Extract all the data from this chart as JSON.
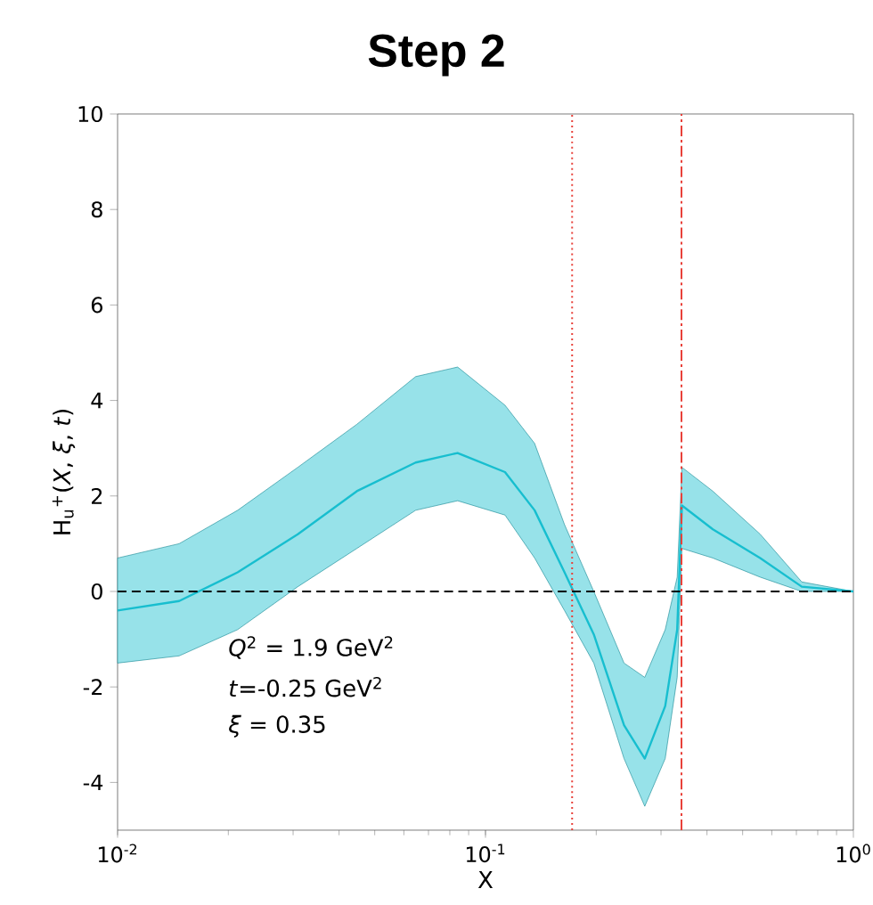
{
  "chart_data": {
    "type": "line",
    "title": "Step 2",
    "xlabel": "X",
    "ylabel": "H$_{u}$$^{+}$(*X*, *ξ*, *t*)",
    "log": "x",
    "xlim": [
      0.01,
      1
    ],
    "ylim": [
      -5,
      10
    ],
    "xticks": [
      {
        "value": 0.01,
        "label": "10$^{-2}$"
      },
      {
        "value": 0.1,
        "label": "10$^{-1}$"
      },
      {
        "value": 1,
        "label": "10$^{0}$"
      }
    ],
    "yticks": [
      -4,
      -2,
      0,
      2,
      4,
      6,
      8,
      10
    ],
    "x": [
      0.01,
      0.0147,
      0.0212,
      0.0309,
      0.0447,
      0.0646,
      0.084,
      0.113,
      0.136,
      0.164,
      0.197,
      0.238,
      0.271,
      0.308,
      0.332,
      0.342,
      0.415,
      0.558,
      0.724,
      1
    ],
    "series": [
      {
        "color": "#17becf",
        "values": [
          -0.4,
          -0.2,
          0.4,
          1.2,
          2.1,
          2.7,
          2.9,
          2.5,
          1.7,
          0.4,
          -0.9,
          -2.8,
          -3.5,
          -2.4,
          -0.8,
          1.8,
          1.3,
          0.7,
          0.1,
          0
        ],
        "lower": [
          -1.5,
          -1.35,
          -0.8,
          0.1,
          0.9,
          1.7,
          1.9,
          1.6,
          0.7,
          -0.4,
          -1.5,
          -3.5,
          -4.5,
          -3.5,
          -1.8,
          0.9,
          0.7,
          0.3,
          0,
          0
        ],
        "upper": [
          0.7,
          1.0,
          1.7,
          2.6,
          3.5,
          4.5,
          4.7,
          3.9,
          3.1,
          1.4,
          0,
          -1.5,
          -1.8,
          -0.8,
          0.3,
          2.6,
          2.1,
          1.2,
          0.2,
          0
        ]
      }
    ],
    "ref_lines": [
      {
        "axis": "y",
        "value": 0,
        "color": "#000000",
        "line_style": "dashed"
      },
      {
        "axis": "x",
        "value": 0.172,
        "color": "#e8413a",
        "line_style": "dotted"
      },
      {
        "axis": "x",
        "value": 0.341,
        "color": "#e8413a",
        "line_style": "dashdot"
      }
    ],
    "annotations": [
      "*Q*$^{2}$ = 1.9 GeV$^{2}$",
      "*t*=-0.25 GeV$^{2}$",
      "*ξ* = 0.35"
    ],
    "marker": "none",
    "line_style": "solid"
  }
}
